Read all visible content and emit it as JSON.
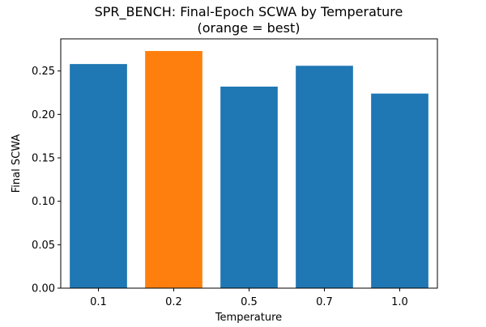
{
  "chart_data": {
    "type": "bar",
    "title": "SPR_BENCH: Final-Epoch SCWA by Temperature",
    "subtitle": "(orange = best)",
    "xlabel": "Temperature",
    "ylabel": "Final SCWA",
    "categories": [
      "0.1",
      "0.2",
      "0.5",
      "0.7",
      "1.0"
    ],
    "values": [
      0.258,
      0.273,
      0.232,
      0.256,
      0.224
    ],
    "best_index": 1,
    "ylim": [
      0,
      0.287
    ],
    "yticks": [
      "0.00",
      "0.05",
      "0.10",
      "0.15",
      "0.20",
      "0.25"
    ],
    "grid": false,
    "legend": "none",
    "colors": {
      "default": "#1f77b4",
      "best": "#ff7f0e"
    }
  }
}
